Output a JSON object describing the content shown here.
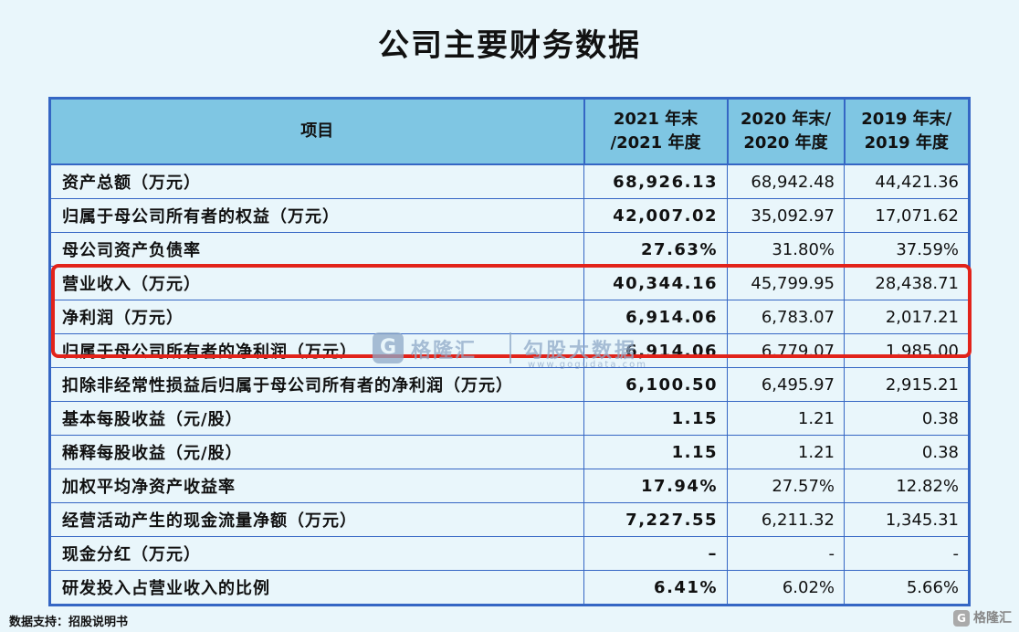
{
  "title": "公司主要财务数据",
  "table": {
    "header": {
      "item": "项目",
      "y2021": [
        "2021 年末",
        "/2021 年度"
      ],
      "y2020": [
        "2020 年末/",
        "2020 年度"
      ],
      "y2019": [
        "2019 年末/",
        "2019 年度"
      ]
    },
    "rows": [
      {
        "label": "资产总额（万元）",
        "v2021": "68,926.13",
        "v2020": "68,942.48",
        "v2019": "44,421.36"
      },
      {
        "label": "归属于母公司所有者的权益（万元）",
        "v2021": "42,007.02",
        "v2020": "35,092.97",
        "v2019": "17,071.62"
      },
      {
        "label": "母公司资产负债率",
        "v2021": "27.63%",
        "v2020": "31.80%",
        "v2019": "37.59%"
      },
      {
        "label": "营业收入（万元）",
        "v2021": "40,344.16",
        "v2020": "45,799.95",
        "v2019": "28,438.71"
      },
      {
        "label": "净利润（万元）",
        "v2021": "6,914.06",
        "v2020": "6,783.07",
        "v2019": "2,017.21"
      },
      {
        "label": "归属于母公司所有者的净利润（万元）",
        "v2021": "6,914.06",
        "v2020": "6,779.07",
        "v2019": "1,985.00"
      },
      {
        "label": "扣除非经常性损益后归属于母公司所有者的净利润（万元）",
        "v2021": "6,100.50",
        "v2020": "6,495.97",
        "v2019": "2,915.21"
      },
      {
        "label": "基本每股收益（元/股）",
        "v2021": "1.15",
        "v2020": "1.21",
        "v2019": "0.38"
      },
      {
        "label": "稀释每股收益（元/股）",
        "v2021": "1.15",
        "v2020": "1.21",
        "v2019": "0.38"
      },
      {
        "label": "加权平均净资产收益率",
        "v2021": "17.94%",
        "v2020": "27.57%",
        "v2019": "12.82%"
      },
      {
        "label": "经营活动产生的现金流量净额（万元）",
        "v2021": "7,227.55",
        "v2020": "6,211.32",
        "v2019": "1,345.31"
      },
      {
        "label": "现金分红（万元）",
        "v2021": "–",
        "v2020": "-",
        "v2019": "-"
      },
      {
        "label": "研发投入占营业收入的比例",
        "v2021": "6.41%",
        "v2020": "6.02%",
        "v2019": "5.66%"
      }
    ]
  },
  "highlight_color": "#e2231a",
  "watermark": {
    "logo_glyph": "G",
    "brand1": "格隆汇",
    "brand2": "勾股大数据",
    "url": "www.gogudata.com"
  },
  "source": "数据支持：招股说明书",
  "corner_brand": "格隆汇",
  "corner_icon": "G"
}
